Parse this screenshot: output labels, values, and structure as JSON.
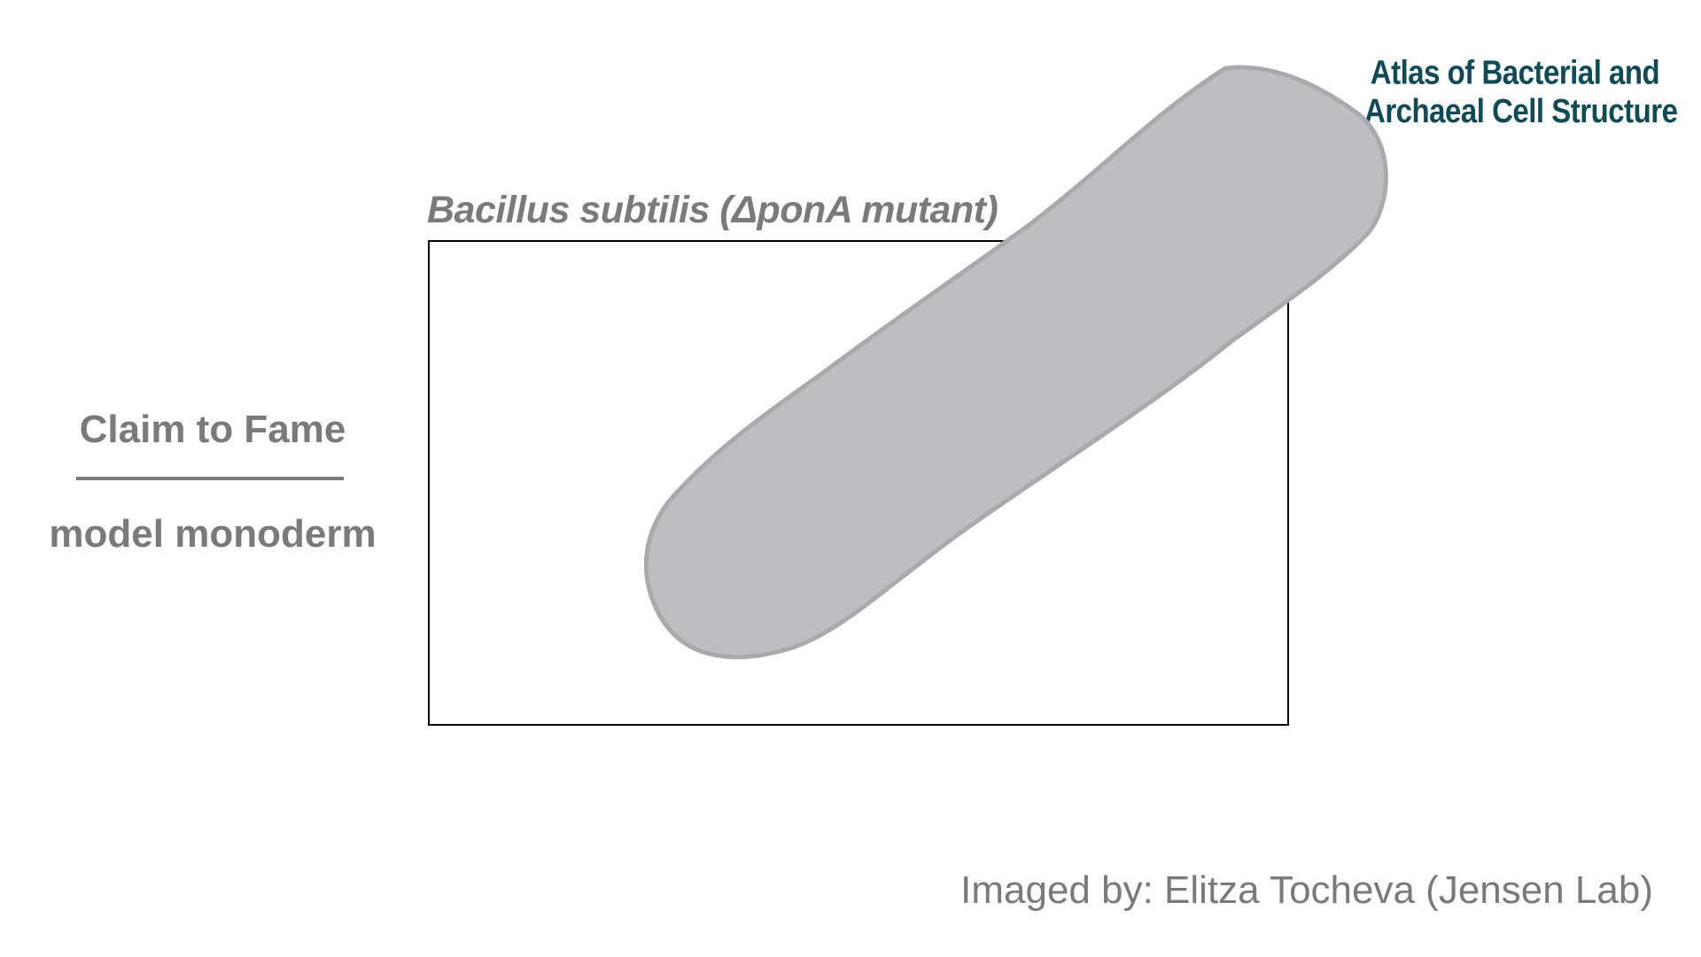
{
  "logo": {
    "line1": "Atlas of Bacterial and",
    "line2": "Archaeal Cell Structure"
  },
  "figure": {
    "title": "Bacillus subtilis (ΔponA mutant)",
    "cell_fill": "#bdbec1",
    "cell_stroke": "#a9aaad",
    "frame_stroke": "#000000"
  },
  "claim": {
    "heading": "Claim to Fame",
    "value": "model monoderm"
  },
  "credit": "Imaged by: Elitza Tocheva (Jensen Lab)",
  "colors": {
    "text": "#7a7a7c",
    "logo": "#0f4a57"
  }
}
